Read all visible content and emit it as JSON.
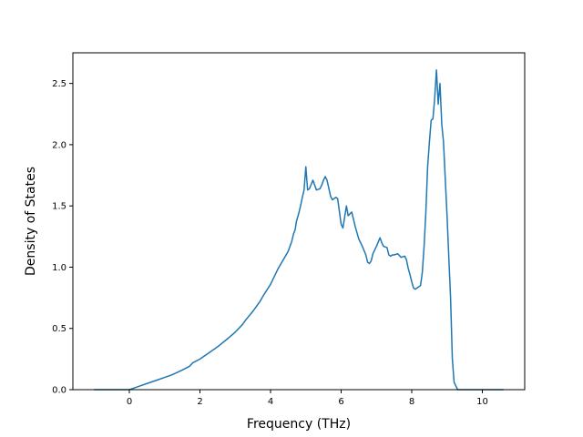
{
  "chart_data": {
    "type": "line",
    "title": "",
    "xlabel": "Frequency (THz)",
    "ylabel": "Density of States",
    "xlim": [
      -1.6,
      11.2
    ],
    "ylim": [
      0.0,
      2.75
    ],
    "grid": false,
    "legend": "none",
    "xticks": [
      0,
      2,
      4,
      6,
      8,
      10
    ],
    "xtick_labels": [
      "0",
      "2",
      "4",
      "6",
      "8",
      "10"
    ],
    "yticks": [
      0.0,
      0.5,
      1.0,
      1.5,
      2.0,
      2.5
    ],
    "ytick_labels": [
      "0.0",
      "0.5",
      "1.0",
      "1.5",
      "2.0",
      "2.5"
    ],
    "series": [
      {
        "color": "#1f77b4",
        "x": [
          -1.0,
          -0.5,
          0.0,
          0.1,
          0.3,
          0.5,
          0.8,
          1.0,
          1.2,
          1.5,
          1.7,
          1.8,
          2.0,
          2.2,
          2.5,
          2.8,
          3.0,
          3.2,
          3.3,
          3.5,
          3.7,
          3.8,
          4.0,
          4.2,
          4.3,
          4.4,
          4.5,
          4.55,
          4.6,
          4.65,
          4.7,
          4.73,
          4.75,
          4.8,
          4.85,
          4.9,
          4.95,
          5.0,
          5.05,
          5.1,
          5.2,
          5.3,
          5.4,
          5.45,
          5.5,
          5.55,
          5.6,
          5.7,
          5.75,
          5.8,
          5.85,
          5.9,
          6.0,
          6.05,
          6.1,
          6.15,
          6.2,
          6.3,
          6.35,
          6.4,
          6.5,
          6.6,
          6.7,
          6.75,
          6.8,
          6.85,
          6.9,
          7.0,
          7.1,
          7.15,
          7.2,
          7.3,
          7.35,
          7.4,
          7.45,
          7.5,
          7.6,
          7.7,
          7.8,
          7.85,
          7.9,
          7.95,
          8.0,
          8.05,
          8.1,
          8.15,
          8.2,
          8.25,
          8.3,
          8.35,
          8.4,
          8.45,
          8.5,
          8.55,
          8.6,
          8.65,
          8.7,
          8.75,
          8.8,
          8.85,
          8.9,
          8.95,
          9.0,
          9.05,
          9.1,
          9.15,
          9.2,
          9.3,
          9.4,
          9.5,
          9.55,
          9.6,
          9.65,
          9.7,
          9.8,
          10.0,
          10.3,
          10.6
        ],
        "y": [
          0.0,
          0.0,
          0.0,
          0.01,
          0.03,
          0.05,
          0.08,
          0.1,
          0.12,
          0.16,
          0.19,
          0.22,
          0.25,
          0.29,
          0.35,
          0.42,
          0.47,
          0.53,
          0.57,
          0.64,
          0.72,
          0.77,
          0.86,
          0.98,
          1.03,
          1.08,
          1.13,
          1.17,
          1.21,
          1.27,
          1.31,
          1.37,
          1.39,
          1.44,
          1.5,
          1.57,
          1.63,
          1.82,
          1.63,
          1.64,
          1.71,
          1.63,
          1.64,
          1.67,
          1.71,
          1.74,
          1.71,
          1.58,
          1.55,
          1.56,
          1.57,
          1.56,
          1.35,
          1.32,
          1.41,
          1.5,
          1.42,
          1.45,
          1.39,
          1.33,
          1.23,
          1.17,
          1.1,
          1.04,
          1.03,
          1.05,
          1.11,
          1.17,
          1.24,
          1.2,
          1.17,
          1.16,
          1.1,
          1.09,
          1.1,
          1.1,
          1.11,
          1.08,
          1.09,
          1.06,
          0.99,
          0.94,
          0.88,
          0.83,
          0.82,
          0.83,
          0.84,
          0.85,
          0.96,
          1.17,
          1.45,
          1.82,
          2.02,
          2.2,
          2.21,
          2.38,
          2.61,
          2.33,
          2.5,
          2.17,
          2.02,
          1.72,
          1.42,
          1.08,
          0.75,
          0.25,
          0.06,
          0.0,
          0.0,
          0.0,
          0.0,
          0.0,
          0.0,
          0.0,
          0.0,
          0.0,
          0.0,
          0.0
        ]
      }
    ]
  }
}
